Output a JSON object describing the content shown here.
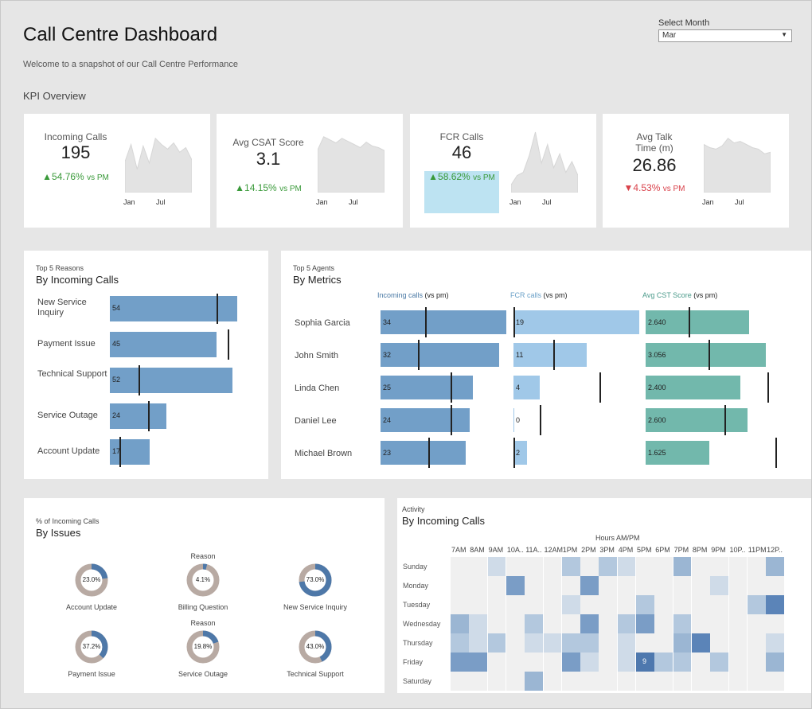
{
  "header": {
    "title": "Call Centre Dashboard",
    "subtitle": "Welcome to a snapshot of our Call Centre Performance",
    "section": "KPI Overview",
    "month_label": "Select Month",
    "month_value": "Mar"
  },
  "kpis": [
    {
      "name": "Incoming Calls",
      "value": "195",
      "change": "▲54.76%",
      "vs": "vs PM",
      "dir": "up",
      "spark": [
        40,
        62,
        30,
        60,
        38,
        70,
        62,
        56,
        64,
        52,
        58,
        42
      ],
      "spark_lo": 0,
      "spark_hi": 80,
      "ax1": "Jan",
      "ax2": "Jul"
    },
    {
      "name": "Avg CSAT Score",
      "value": "3.1",
      "change": "▲14.15%",
      "vs": "vs PM",
      "dir": "up",
      "spark": [
        55,
        72,
        68,
        64,
        70,
        66,
        62,
        58,
        65,
        60,
        58,
        54
      ],
      "spark_lo": 0,
      "spark_hi": 80,
      "ax1": "Jan",
      "ax2": "Jul"
    },
    {
      "name": "FCR Calls",
      "value": "46",
      "change": "▲58.62%",
      "vs": "vs PM",
      "dir": "up",
      "highlight": "#bde3f2",
      "spark": [
        10,
        22,
        26,
        48,
        78,
        38,
        62,
        32,
        50,
        26,
        40,
        22
      ],
      "spark_lo": 0,
      "spark_hi": 80,
      "ax1": "Jan",
      "ax2": "Jul"
    },
    {
      "name": "Avg Talk Time (m)",
      "value": "26.86",
      "change": "▼4.53%",
      "vs": "vs PM",
      "dir": "down",
      "spark": [
        62,
        58,
        56,
        60,
        70,
        64,
        66,
        62,
        58,
        56,
        50,
        52
      ],
      "spark_lo": 0,
      "spark_hi": 80,
      "ax1": "Jan",
      "ax2": "Jul"
    }
  ],
  "reasons": {
    "small_title": "Top 5 Reasons",
    "title": "By Incoming Calls",
    "color": "#729fc8",
    "max": 60,
    "items": [
      {
        "label": "New Service Inquiry",
        "value": 54,
        "pm": 45
      },
      {
        "label": "Payment Issue",
        "value": 45,
        "pm": 50
      },
      {
        "label": "Technical Support",
        "value": 52,
        "pm": 12
      },
      {
        "label": "Service Outage",
        "value": 24,
        "pm": 16
      },
      {
        "label": "Account Update",
        "value": 17,
        "pm": 4
      }
    ]
  },
  "agents": {
    "small_title": "Top 5 Agents",
    "title": "By Metrics",
    "columns": [
      {
        "metric": "Incoming calls",
        "suffix": "(vs pm)",
        "color": "#729fc8",
        "metric_color": "#4a79a5",
        "max": 34
      },
      {
        "metric": "FCR calls",
        "suffix": "(vs pm)",
        "color": "#a0c8e8",
        "metric_color": "#6aa0c8",
        "max": 19
      },
      {
        "metric": "Avg CST Score",
        "suffix": "(vs pm)",
        "color": "#72b8ac",
        "metric_color": "#4a9a8a",
        "max": 3.2
      }
    ],
    "rows": [
      {
        "name": "Sophia Garcia",
        "vals": [
          "34",
          "19",
          "2.640"
        ],
        "nums": [
          34,
          19,
          2.64
        ],
        "pm": [
          12,
          0,
          1.1
        ]
      },
      {
        "name": "John Smith",
        "vals": [
          "32",
          "11",
          "3.056"
        ],
        "nums": [
          32,
          11,
          3.056
        ],
        "pm": [
          10,
          6,
          1.6
        ]
      },
      {
        "name": "Linda Chen",
        "vals": [
          "25",
          "4",
          "2.400"
        ],
        "nums": [
          25,
          4,
          2.4
        ],
        "pm": [
          19,
          13,
          3.1
        ]
      },
      {
        "name": "Daniel Lee",
        "vals": [
          "24",
          "0",
          "2.600"
        ],
        "nums": [
          24,
          0,
          2.6
        ],
        "pm": [
          19,
          4,
          2.0
        ]
      },
      {
        "name": "Michael Brown",
        "vals": [
          "23",
          "2",
          "1.625"
        ],
        "nums": [
          23,
          2,
          1.625
        ],
        "pm": [
          13,
          0,
          3.3
        ]
      }
    ]
  },
  "issues": {
    "small_title": "% of Incoming Calls",
    "title": "By Issues",
    "donuts": [
      {
        "label": "Account Update",
        "pct": "23.0%",
        "value": 23.0,
        "reason": ""
      },
      {
        "label": "Billing Question",
        "pct": "4.1%",
        "value": 4.1,
        "reason": "Reason"
      },
      {
        "label": "New Service Inquiry",
        "pct": "73.0%",
        "value": 73.0,
        "reason": ""
      },
      {
        "label": "Payment Issue",
        "pct": "37.2%",
        "value": 37.2,
        "reason": ""
      },
      {
        "label": "Service Outage",
        "pct": "19.8%",
        "value": 19.8,
        "reason": "Reason"
      },
      {
        "label": "Technical Support",
        "pct": "43.0%",
        "value": 43.0,
        "reason": ""
      }
    ]
  },
  "activity": {
    "small_title": "Activity",
    "title": "By Incoming Calls",
    "hours_title": "Hours AM/PM",
    "hours": [
      "7AM",
      "8AM",
      "9AM",
      "10A..",
      "11A..",
      "12AM",
      "1PM",
      "2PM",
      "3PM",
      "4PM",
      "5PM",
      "6PM",
      "7PM",
      "8PM",
      "9PM",
      "10P..",
      "11PM",
      "12P.."
    ],
    "days": [
      "Sunday",
      "Monday",
      "Tuesday",
      "Wednesday",
      "Thursday",
      "Friday",
      "Saturday"
    ],
    "cells": [
      [
        0,
        0,
        1,
        0,
        0,
        0,
        2,
        0,
        2,
        1,
        0,
        0,
        3,
        0,
        0,
        0,
        0,
        3
      ],
      [
        0,
        0,
        0,
        4,
        0,
        0,
        0,
        4,
        0,
        0,
        0,
        0,
        0,
        0,
        1,
        0,
        0,
        0
      ],
      [
        0,
        0,
        0,
        0,
        0,
        0,
        1,
        0,
        0,
        0,
        2,
        0,
        0,
        0,
        0,
        0,
        2,
        5
      ],
      [
        3,
        1,
        0,
        0,
        2,
        0,
        0,
        4,
        0,
        2,
        4,
        0,
        2,
        0,
        0,
        0,
        0,
        0
      ],
      [
        2,
        1,
        2,
        0,
        1,
        1,
        2,
        2,
        0,
        1,
        0,
        0,
        3,
        5,
        0,
        0,
        0,
        1
      ],
      [
        4,
        4,
        0,
        0,
        0,
        0,
        4,
        1,
        0,
        1,
        9,
        2,
        2,
        0,
        2,
        0,
        0,
        3
      ],
      [
        0,
        0,
        0,
        0,
        3,
        0,
        0,
        0,
        0,
        0,
        0,
        0,
        0,
        0,
        0,
        0,
        0,
        0
      ]
    ],
    "labeled_cell": {
      "day": 5,
      "hour": 10,
      "text": "9"
    }
  }
}
